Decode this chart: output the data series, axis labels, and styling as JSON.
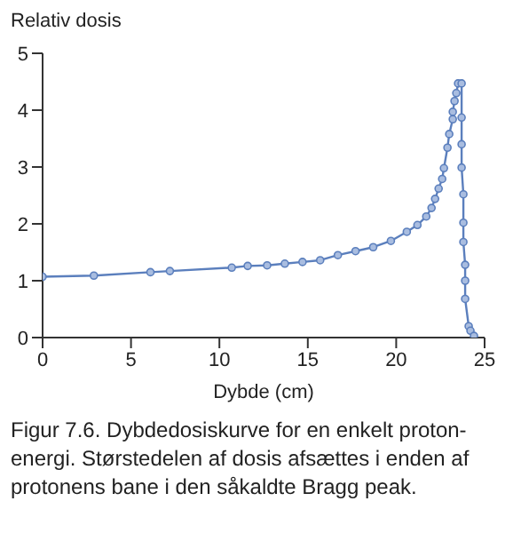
{
  "chart_data": {
    "type": "line",
    "ylabel": "Relativ dosis",
    "xlabel": "Dybde (cm)",
    "x": [
      0,
      2.9,
      6.1,
      7.2,
      10.7,
      11.6,
      12.7,
      13.7,
      14.7,
      15.7,
      16.7,
      17.7,
      18.7,
      19.7,
      20.6,
      21.2,
      21.7,
      22.0,
      22.2,
      22.4,
      22.6,
      22.7,
      22.9,
      23.0,
      23.2,
      23.2,
      23.3,
      23.4,
      23.5,
      23.7,
      23.7,
      23.7,
      23.7,
      23.8,
      23.8,
      23.8,
      23.9,
      23.9,
      23.9,
      24.1,
      24.2,
      24.4
    ],
    "series": [
      {
        "color": "#5b7fbd",
        "values": [
          1.07,
          1.09,
          1.15,
          1.17,
          1.23,
          1.26,
          1.27,
          1.3,
          1.33,
          1.36,
          1.45,
          1.52,
          1.59,
          1.7,
          1.86,
          1.98,
          2.13,
          2.28,
          2.44,
          2.62,
          2.79,
          2.98,
          3.34,
          3.58,
          3.84,
          3.97,
          4.16,
          4.3,
          4.47,
          4.47,
          3.87,
          3.4,
          2.99,
          2.52,
          2.02,
          1.68,
          1.28,
          1.0,
          0.68,
          0.2,
          0.12,
          0.03
        ]
      }
    ],
    "xlim": [
      0,
      25
    ],
    "xticks": [
      0,
      5,
      10,
      15,
      20,
      25
    ],
    "ylim": [
      0,
      5
    ],
    "yticks": [
      0,
      1,
      2,
      3,
      4,
      5
    ],
    "marker": "circle",
    "grid": false,
    "legend": false,
    "annotations": [
      "Figur 7.6. Dybdedosiskurve for en enkelt proton-energi. Størstedelen af dosis afsættes i enden af protonens bane i den såkaldte Bragg peak."
    ]
  }
}
